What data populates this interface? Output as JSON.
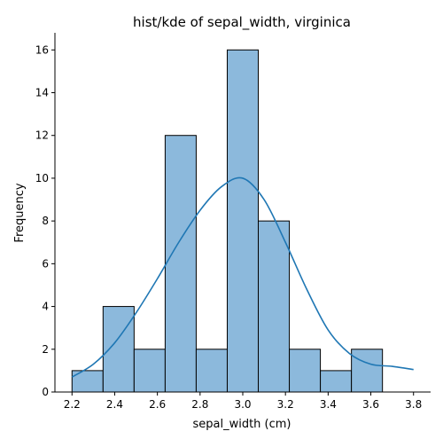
{
  "chart_data": {
    "type": "bar",
    "title": "hist/kde of sepal_width, virginica",
    "xlabel": "sepal_width (cm)",
    "ylabel": "Frequency",
    "xlim": [
      2.12,
      3.88
    ],
    "ylim": [
      0,
      16.8
    ],
    "xticks": [
      2.2,
      2.4,
      2.6,
      2.8,
      3.0,
      3.2,
      3.4,
      3.6,
      3.8
    ],
    "xtick_labels": [
      "2.2",
      "2.4",
      "2.6",
      "2.8",
      "3.0",
      "3.2",
      "3.4",
      "3.6",
      "3.8"
    ],
    "yticks": [
      0,
      2,
      4,
      6,
      8,
      10,
      12,
      14,
      16
    ],
    "ytick_labels": [
      "0",
      "2",
      "4",
      "6",
      "8",
      "10",
      "12",
      "14",
      "16"
    ],
    "bins": [
      {
        "x0": 2.2,
        "x1": 2.3455,
        "count": 1
      },
      {
        "x0": 2.3455,
        "x1": 2.4909,
        "count": 4
      },
      {
        "x0": 2.4909,
        "x1": 2.6364,
        "count": 2
      },
      {
        "x0": 2.6364,
        "x1": 2.7818,
        "count": 12
      },
      {
        "x0": 2.7818,
        "x1": 2.9273,
        "count": 2
      },
      {
        "x0": 2.9273,
        "x1": 3.0727,
        "count": 16
      },
      {
        "x0": 3.0727,
        "x1": 3.2182,
        "count": 8
      },
      {
        "x0": 3.2182,
        "x1": 3.3636,
        "count": 2
      },
      {
        "x0": 3.3636,
        "x1": 3.5091,
        "count": 1
      },
      {
        "x0": 3.5091,
        "x1": 3.6545,
        "count": 2
      }
    ],
    "kde": {
      "x": [
        2.2,
        2.3,
        2.4,
        2.5,
        2.6,
        2.7,
        2.8,
        2.9,
        3.0,
        3.1,
        3.2,
        3.3,
        3.4,
        3.5,
        3.6,
        3.7,
        3.8
      ],
      "y": [
        0.7,
        1.3,
        2.3,
        3.7,
        5.3,
        7.0,
        8.5,
        9.6,
        10.0,
        9.0,
        7.0,
        4.8,
        2.9,
        1.8,
        1.3,
        1.2,
        1.05
      ]
    },
    "colors": {
      "bar_fill": "#8cb9dc",
      "bar_edge": "#000000",
      "kde_line": "#1f77b4"
    },
    "grid": false,
    "legend": "none"
  }
}
